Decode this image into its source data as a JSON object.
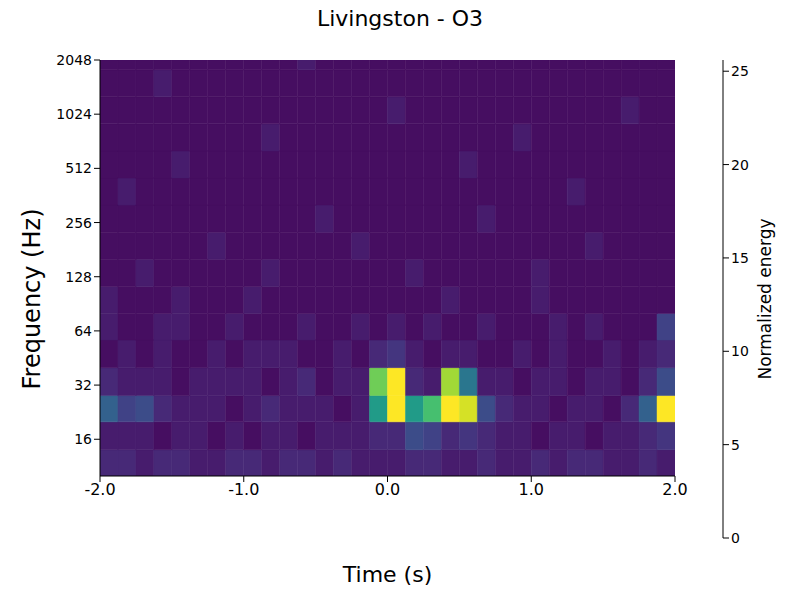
{
  "chart_data": {
    "type": "heatmap",
    "title": "Livingston - O3",
    "x_label": "Time (s)",
    "y_label": "Frequency (Hz)",
    "xlim": [
      -2,
      2
    ],
    "xticks": [
      {
        "value": -2,
        "label": "-2.0"
      },
      {
        "value": -1,
        "label": "-1.0"
      },
      {
        "value": 0,
        "label": "0.0"
      },
      {
        "value": 1,
        "label": "1.0"
      },
      {
        "value": 2,
        "label": "2.0"
      }
    ],
    "ylim": [
      10,
      2048
    ],
    "yticks": [
      16,
      32,
      64,
      128,
      256,
      512,
      1024,
      2048
    ],
    "log": "y",
    "grid": false,
    "time_edges": [
      -2,
      -1.875,
      -1.75,
      -1.625,
      -1.5,
      -1.375,
      -1.25,
      -1.125,
      -1,
      -0.875,
      -0.75,
      -0.625,
      -0.5,
      -0.375,
      -0.25,
      -0.125,
      0,
      0.125,
      0.25,
      0.375,
      0.5,
      0.625,
      0.75,
      0.875,
      1,
      1.125,
      1.25,
      1.375,
      1.5,
      1.625,
      1.75,
      1.875,
      2
    ],
    "freq_edges": [
      10,
      14,
      20,
      28,
      40,
      57,
      80,
      113,
      160,
      226,
      320,
      453,
      640,
      905,
      1280,
      1810,
      2048
    ],
    "cells": [
      [
        3,
        3,
        2,
        3,
        3,
        2,
        2,
        3,
        3,
        2,
        3,
        3,
        2,
        3,
        2,
        2,
        2,
        3,
        3,
        2,
        2,
        3,
        2,
        2,
        3,
        2,
        3,
        3,
        2,
        2,
        3,
        2
      ],
      [
        2,
        2,
        2,
        1,
        2,
        2,
        1,
        2,
        1,
        2,
        2,
        1,
        2,
        2,
        2,
        3,
        3,
        6,
        5,
        3,
        4,
        3,
        2,
        2,
        1,
        2,
        2,
        1,
        2,
        2,
        3,
        4
      ],
      [
        8,
        5,
        6,
        3,
        2,
        2,
        2,
        1,
        2,
        3,
        2,
        2,
        2,
        1,
        2,
        14,
        26,
        14,
        18,
        26,
        24,
        6,
        3,
        2,
        2,
        1,
        2,
        2,
        1,
        3,
        8,
        26
      ],
      [
        3,
        2,
        2,
        2,
        1,
        2,
        2,
        2,
        2,
        1,
        2,
        3,
        1,
        2,
        2,
        20,
        26,
        3,
        2,
        22,
        10,
        2,
        2,
        1,
        2,
        2,
        1,
        2,
        2,
        1,
        3,
        6
      ],
      [
        1,
        2,
        1,
        2,
        1,
        1,
        2,
        1,
        2,
        2,
        2,
        1,
        1,
        2,
        1,
        3,
        4,
        2,
        1,
        2,
        2,
        1,
        1,
        2,
        1,
        2,
        1,
        1,
        2,
        1,
        2,
        3
      ],
      [
        2,
        1,
        1,
        2,
        2,
        1,
        1,
        2,
        1,
        1,
        1,
        2,
        1,
        1,
        2,
        1,
        2,
        1,
        2,
        1,
        1,
        2,
        1,
        1,
        1,
        2,
        1,
        2,
        1,
        1,
        1,
        5
      ],
      [
        2,
        1,
        1,
        1,
        2,
        1,
        1,
        1,
        2,
        1,
        1,
        1,
        1,
        1,
        1,
        1,
        1,
        1,
        1,
        2,
        1,
        1,
        1,
        1,
        2,
        1,
        1,
        1,
        1,
        1,
        1,
        1
      ],
      [
        1,
        1,
        2,
        1,
        1,
        1,
        1,
        1,
        1,
        2,
        1,
        1,
        1,
        1,
        1,
        1,
        1,
        2,
        1,
        1,
        1,
        1,
        1,
        1,
        2,
        1,
        1,
        1,
        1,
        1,
        1,
        1
      ],
      [
        1,
        1,
        1,
        1,
        1,
        1,
        2,
        1,
        1,
        1,
        1,
        1,
        1,
        1,
        2,
        1,
        1,
        1,
        1,
        1,
        1,
        1,
        1,
        1,
        1,
        1,
        1,
        2,
        1,
        1,
        1,
        1
      ],
      [
        1,
        1,
        1,
        1,
        1,
        1,
        1,
        1,
        1,
        1,
        1,
        1,
        2,
        1,
        1,
        1,
        1,
        1,
        1,
        1,
        1,
        2,
        1,
        1,
        1,
        1,
        1,
        1,
        1,
        1,
        1,
        1
      ],
      [
        1,
        2,
        1,
        1,
        1,
        1,
        1,
        1,
        1,
        1,
        1,
        1,
        1,
        1,
        1,
        1,
        1,
        1,
        1,
        1,
        1,
        1,
        1,
        1,
        1,
        1,
        2,
        1,
        1,
        1,
        1,
        1
      ],
      [
        1,
        1,
        1,
        1,
        2,
        1,
        1,
        1,
        1,
        1,
        1,
        1,
        1,
        1,
        1,
        1,
        1,
        1,
        1,
        1,
        2,
        1,
        1,
        1,
        1,
        1,
        1,
        1,
        1,
        1,
        1,
        1
      ],
      [
        1,
        1,
        1,
        1,
        1,
        1,
        1,
        1,
        1,
        2,
        1,
        1,
        1,
        1,
        1,
        1,
        1,
        1,
        1,
        1,
        1,
        1,
        1,
        2,
        1,
        1,
        1,
        1,
        1,
        1,
        1,
        1
      ],
      [
        1,
        1,
        1,
        1,
        1,
        1,
        1,
        1,
        1,
        1,
        1,
        1,
        1,
        1,
        1,
        1,
        2,
        1,
        1,
        1,
        1,
        1,
        1,
        1,
        1,
        1,
        1,
        1,
        1,
        2,
        1,
        1
      ],
      [
        1,
        1,
        1,
        2,
        1,
        1,
        1,
        1,
        1,
        1,
        1,
        1,
        1,
        1,
        1,
        1,
        1,
        1,
        1,
        1,
        1,
        1,
        1,
        1,
        1,
        1,
        1,
        1,
        1,
        1,
        1,
        1
      ],
      [
        1,
        1,
        1,
        1,
        1,
        1,
        1,
        1,
        1,
        1,
        1,
        2,
        1,
        1,
        1,
        1,
        1,
        1,
        1,
        1,
        1,
        1,
        1,
        1,
        1,
        1,
        1,
        1,
        1,
        1,
        1,
        1
      ]
    ],
    "colorbar": {
      "label": "Normalized energy",
      "range": [
        0,
        25.6
      ],
      "ticks": [
        0,
        5,
        10,
        15,
        20,
        25
      ]
    }
  }
}
